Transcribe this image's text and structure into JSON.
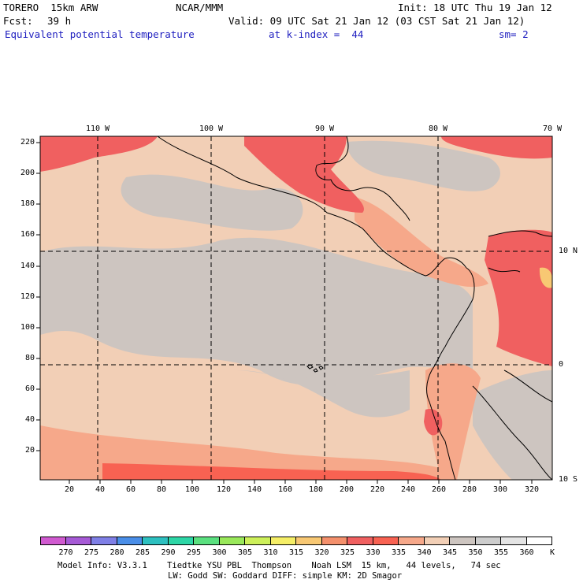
{
  "header": {
    "model": "TORERO  15km ARW",
    "center": "NCAR/MMM",
    "init": "Init: 18 UTC Thu 19 Jan 12",
    "fcst_label": "Fcst:",
    "fcst_value": "39 h",
    "valid": "Valid: 09 UTC Sat 21 Jan 12 (03 CST Sat 21 Jan 12)",
    "field": "Equivalent potential temperature",
    "level": "at k-index =  44",
    "smooth": "sm= 2"
  },
  "axes": {
    "top_lon_labels": [
      "110 W",
      "100 W",
      "90 W",
      "80 W",
      "70 W"
    ],
    "right_lat_labels": [
      "10 N",
      "0",
      "10 S"
    ],
    "left_grid_labels": [
      "220",
      "200",
      "180",
      "160",
      "140",
      "120",
      "100",
      "80",
      "60",
      "40",
      "20"
    ],
    "bottom_grid_labels": [
      "20",
      "40",
      "60",
      "80",
      "100",
      "120",
      "140",
      "160",
      "180",
      "200",
      "220",
      "240",
      "260",
      "280",
      "300",
      "320"
    ]
  },
  "colorbar": {
    "labels": [
      "270",
      "275",
      "280",
      "285",
      "290",
      "295",
      "300",
      "305",
      "310",
      "315",
      "320",
      "325",
      "330",
      "335",
      "340",
      "345",
      "350",
      "355",
      "360"
    ],
    "unit": "K",
    "colors": [
      "#d05ad0",
      "#a65ad6",
      "#7f7fe6",
      "#4a8ee8",
      "#2dc0c0",
      "#2dd6a6",
      "#5ae07f",
      "#99e85a",
      "#cdf05a",
      "#f5ee66",
      "#f8c873",
      "#f4906c",
      "#f06060",
      "#f86252",
      "#f6a88a",
      "#f2cfb6",
      "#cdc5c0",
      "#cdcdcd",
      "#e4e4e4",
      "#ffffff"
    ]
  },
  "footer": {
    "line1": "Model Info: V3.3.1    Tiedtke YSU PBL  Thompson    Noah LSM  15 km,   44 levels,   74 sec",
    "line2": "LW: Godd SW: Goddard DIFF: simple KM: 2D Smagor"
  }
}
